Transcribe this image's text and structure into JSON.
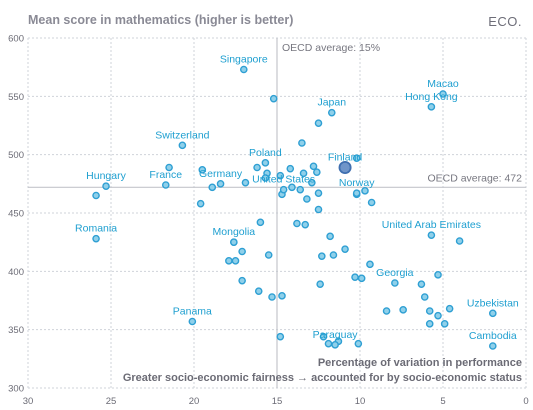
{
  "brand": "ECO.",
  "chart_data": {
    "type": "scatter",
    "title": "Mean score in mathematics (higher is better)",
    "xlim": [
      30,
      0
    ],
    "ylim": [
      300,
      600
    ],
    "x_ticks": [
      30,
      25,
      20,
      15,
      10,
      5,
      0
    ],
    "y_ticks": [
      300,
      350,
      400,
      450,
      500,
      550,
      600
    ],
    "grid": true,
    "references": {
      "x_average": {
        "value": 15,
        "label": "OECD average: 15%"
      },
      "y_average": {
        "value": 472,
        "label": "OECD average: 472"
      }
    },
    "notes": {
      "x_note_top": "Percentage of variation in performance",
      "x_note_bottom": "Greater socio-economic fairness → accounted for by socio-economic status"
    },
    "labeled_points": [
      {
        "label": "Singapore",
        "x": 17,
        "y": 573
      },
      {
        "label": "Macao",
        "x": 5,
        "y": 552
      },
      {
        "label": "Hong Kong",
        "x": 5.7,
        "y": 541
      },
      {
        "label": "Japan",
        "x": 11.7,
        "y": 536
      },
      {
        "label": "Switzerland",
        "x": 20.7,
        "y": 508
      },
      {
        "label": "Poland",
        "x": 15.7,
        "y": 493
      },
      {
        "label": "Finland",
        "x": 10.9,
        "y": 489
      },
      {
        "label": "Norway",
        "x": 10.2,
        "y": 467
      },
      {
        "label": "Hungary",
        "x": 25.3,
        "y": 473
      },
      {
        "label": "France",
        "x": 21.7,
        "y": 474
      },
      {
        "label": "Germany",
        "x": 18.4,
        "y": 475
      },
      {
        "label": "United States",
        "x": 14.6,
        "y": 470
      },
      {
        "label": "Romania",
        "x": 25.9,
        "y": 428
      },
      {
        "label": "Mongolia",
        "x": 17.6,
        "y": 425
      },
      {
        "label": "United Arab Emirates",
        "x": 5.7,
        "y": 431
      },
      {
        "label": "Georgia",
        "x": 7.9,
        "y": 390
      },
      {
        "label": "Uzbekistan",
        "x": 2,
        "y": 364
      },
      {
        "label": "Panama",
        "x": 20.1,
        "y": 357
      },
      {
        "label": "Paraguay",
        "x": 11.5,
        "y": 337
      },
      {
        "label": "Cambodia",
        "x": 2,
        "y": 336
      }
    ],
    "other_points": [
      {
        "x": 15.2,
        "y": 548
      },
      {
        "x": 12.5,
        "y": 527
      },
      {
        "x": 13.5,
        "y": 510
      },
      {
        "x": 10.2,
        "y": 497
      },
      {
        "x": 21.5,
        "y": 489
      },
      {
        "x": 19.5,
        "y": 487
      },
      {
        "x": 16.2,
        "y": 489
      },
      {
        "x": 14.2,
        "y": 488
      },
      {
        "x": 12.8,
        "y": 490
      },
      {
        "x": 15.6,
        "y": 484
      },
      {
        "x": 14.8,
        "y": 482
      },
      {
        "x": 13.4,
        "y": 484
      },
      {
        "x": 12.6,
        "y": 485
      },
      {
        "x": 15.7,
        "y": 480
      },
      {
        "x": 16.9,
        "y": 476
      },
      {
        "x": 12.9,
        "y": 476
      },
      {
        "x": 18.9,
        "y": 472
      },
      {
        "x": 14.1,
        "y": 472
      },
      {
        "x": 13.6,
        "y": 470
      },
      {
        "x": 12.5,
        "y": 467
      },
      {
        "x": 9.7,
        "y": 469
      },
      {
        "x": 14.7,
        "y": 466
      },
      {
        "x": 10.2,
        "y": 466
      },
      {
        "x": 9.3,
        "y": 459
      },
      {
        "x": 25.9,
        "y": 465
      },
      {
        "x": 19.6,
        "y": 458
      },
      {
        "x": 13.2,
        "y": 462
      },
      {
        "x": 12.5,
        "y": 453
      },
      {
        "x": 16,
        "y": 442
      },
      {
        "x": 13.8,
        "y": 441
      },
      {
        "x": 13.3,
        "y": 440
      },
      {
        "x": 11.8,
        "y": 430
      },
      {
        "x": 4,
        "y": 426
      },
      {
        "x": 17.6,
        "y": 425
      },
      {
        "x": 10.9,
        "y": 419
      },
      {
        "x": 17.1,
        "y": 417
      },
      {
        "x": 15.5,
        "y": 414
      },
      {
        "x": 12.3,
        "y": 413
      },
      {
        "x": 11.6,
        "y": 414
      },
      {
        "x": 17.9,
        "y": 409
      },
      {
        "x": 17.5,
        "y": 409
      },
      {
        "x": 9.4,
        "y": 406
      },
      {
        "x": 10.3,
        "y": 395
      },
      {
        "x": 9.9,
        "y": 394
      },
      {
        "x": 5.3,
        "y": 397
      },
      {
        "x": 17.1,
        "y": 392
      },
      {
        "x": 12.4,
        "y": 389
      },
      {
        "x": 6.3,
        "y": 389
      },
      {
        "x": 16.1,
        "y": 383
      },
      {
        "x": 15.3,
        "y": 378
      },
      {
        "x": 14.7,
        "y": 379
      },
      {
        "x": 6.1,
        "y": 378
      },
      {
        "x": 8.4,
        "y": 366
      },
      {
        "x": 7.4,
        "y": 367
      },
      {
        "x": 5.8,
        "y": 366
      },
      {
        "x": 5.3,
        "y": 362
      },
      {
        "x": 4.6,
        "y": 368
      },
      {
        "x": 5.8,
        "y": 355
      },
      {
        "x": 4.9,
        "y": 355
      },
      {
        "x": 14.8,
        "y": 344
      },
      {
        "x": 12.2,
        "y": 344
      },
      {
        "x": 11.3,
        "y": 340
      },
      {
        "x": 10.1,
        "y": 338
      },
      {
        "x": 11.9,
        "y": 338
      }
    ],
    "highlight_point": {
      "x": 10.9,
      "y": 489
    }
  }
}
